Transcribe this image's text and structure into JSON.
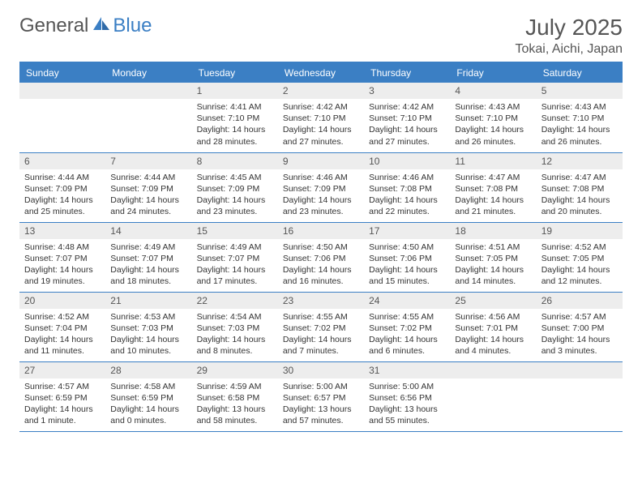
{
  "brand": {
    "word1": "General",
    "word2": "Blue"
  },
  "title": {
    "month_year": "July 2025",
    "location": "Tokai, Aichi, Japan"
  },
  "colors": {
    "accent": "#3b7fc4",
    "header_text": "#ffffff",
    "daynum_bg": "#ededed",
    "text": "#333333",
    "muted": "#555555",
    "background": "#ffffff"
  },
  "calendar": {
    "day_headers": [
      "Sunday",
      "Monday",
      "Tuesday",
      "Wednesday",
      "Thursday",
      "Friday",
      "Saturday"
    ],
    "first_weekday_index": 2,
    "days": [
      {
        "n": 1,
        "sunrise": "4:41 AM",
        "sunset": "7:10 PM",
        "daylight": "14 hours and 28 minutes."
      },
      {
        "n": 2,
        "sunrise": "4:42 AM",
        "sunset": "7:10 PM",
        "daylight": "14 hours and 27 minutes."
      },
      {
        "n": 3,
        "sunrise": "4:42 AM",
        "sunset": "7:10 PM",
        "daylight": "14 hours and 27 minutes."
      },
      {
        "n": 4,
        "sunrise": "4:43 AM",
        "sunset": "7:10 PM",
        "daylight": "14 hours and 26 minutes."
      },
      {
        "n": 5,
        "sunrise": "4:43 AM",
        "sunset": "7:10 PM",
        "daylight": "14 hours and 26 minutes."
      },
      {
        "n": 6,
        "sunrise": "4:44 AM",
        "sunset": "7:09 PM",
        "daylight": "14 hours and 25 minutes."
      },
      {
        "n": 7,
        "sunrise": "4:44 AM",
        "sunset": "7:09 PM",
        "daylight": "14 hours and 24 minutes."
      },
      {
        "n": 8,
        "sunrise": "4:45 AM",
        "sunset": "7:09 PM",
        "daylight": "14 hours and 23 minutes."
      },
      {
        "n": 9,
        "sunrise": "4:46 AM",
        "sunset": "7:09 PM",
        "daylight": "14 hours and 23 minutes."
      },
      {
        "n": 10,
        "sunrise": "4:46 AM",
        "sunset": "7:08 PM",
        "daylight": "14 hours and 22 minutes."
      },
      {
        "n": 11,
        "sunrise": "4:47 AM",
        "sunset": "7:08 PM",
        "daylight": "14 hours and 21 minutes."
      },
      {
        "n": 12,
        "sunrise": "4:47 AM",
        "sunset": "7:08 PM",
        "daylight": "14 hours and 20 minutes."
      },
      {
        "n": 13,
        "sunrise": "4:48 AM",
        "sunset": "7:07 PM",
        "daylight": "14 hours and 19 minutes."
      },
      {
        "n": 14,
        "sunrise": "4:49 AM",
        "sunset": "7:07 PM",
        "daylight": "14 hours and 18 minutes."
      },
      {
        "n": 15,
        "sunrise": "4:49 AM",
        "sunset": "7:07 PM",
        "daylight": "14 hours and 17 minutes."
      },
      {
        "n": 16,
        "sunrise": "4:50 AM",
        "sunset": "7:06 PM",
        "daylight": "14 hours and 16 minutes."
      },
      {
        "n": 17,
        "sunrise": "4:50 AM",
        "sunset": "7:06 PM",
        "daylight": "14 hours and 15 minutes."
      },
      {
        "n": 18,
        "sunrise": "4:51 AM",
        "sunset": "7:05 PM",
        "daylight": "14 hours and 14 minutes."
      },
      {
        "n": 19,
        "sunrise": "4:52 AM",
        "sunset": "7:05 PM",
        "daylight": "14 hours and 12 minutes."
      },
      {
        "n": 20,
        "sunrise": "4:52 AM",
        "sunset": "7:04 PM",
        "daylight": "14 hours and 11 minutes."
      },
      {
        "n": 21,
        "sunrise": "4:53 AM",
        "sunset": "7:03 PM",
        "daylight": "14 hours and 10 minutes."
      },
      {
        "n": 22,
        "sunrise": "4:54 AM",
        "sunset": "7:03 PM",
        "daylight": "14 hours and 8 minutes."
      },
      {
        "n": 23,
        "sunrise": "4:55 AM",
        "sunset": "7:02 PM",
        "daylight": "14 hours and 7 minutes."
      },
      {
        "n": 24,
        "sunrise": "4:55 AM",
        "sunset": "7:02 PM",
        "daylight": "14 hours and 6 minutes."
      },
      {
        "n": 25,
        "sunrise": "4:56 AM",
        "sunset": "7:01 PM",
        "daylight": "14 hours and 4 minutes."
      },
      {
        "n": 26,
        "sunrise": "4:57 AM",
        "sunset": "7:00 PM",
        "daylight": "14 hours and 3 minutes."
      },
      {
        "n": 27,
        "sunrise": "4:57 AM",
        "sunset": "6:59 PM",
        "daylight": "14 hours and 1 minute."
      },
      {
        "n": 28,
        "sunrise": "4:58 AM",
        "sunset": "6:59 PM",
        "daylight": "14 hours and 0 minutes."
      },
      {
        "n": 29,
        "sunrise": "4:59 AM",
        "sunset": "6:58 PM",
        "daylight": "13 hours and 58 minutes."
      },
      {
        "n": 30,
        "sunrise": "5:00 AM",
        "sunset": "6:57 PM",
        "daylight": "13 hours and 57 minutes."
      },
      {
        "n": 31,
        "sunrise": "5:00 AM",
        "sunset": "6:56 PM",
        "daylight": "13 hours and 55 minutes."
      }
    ],
    "labels": {
      "sunrise": "Sunrise:",
      "sunset": "Sunset:",
      "daylight": "Daylight:"
    }
  }
}
